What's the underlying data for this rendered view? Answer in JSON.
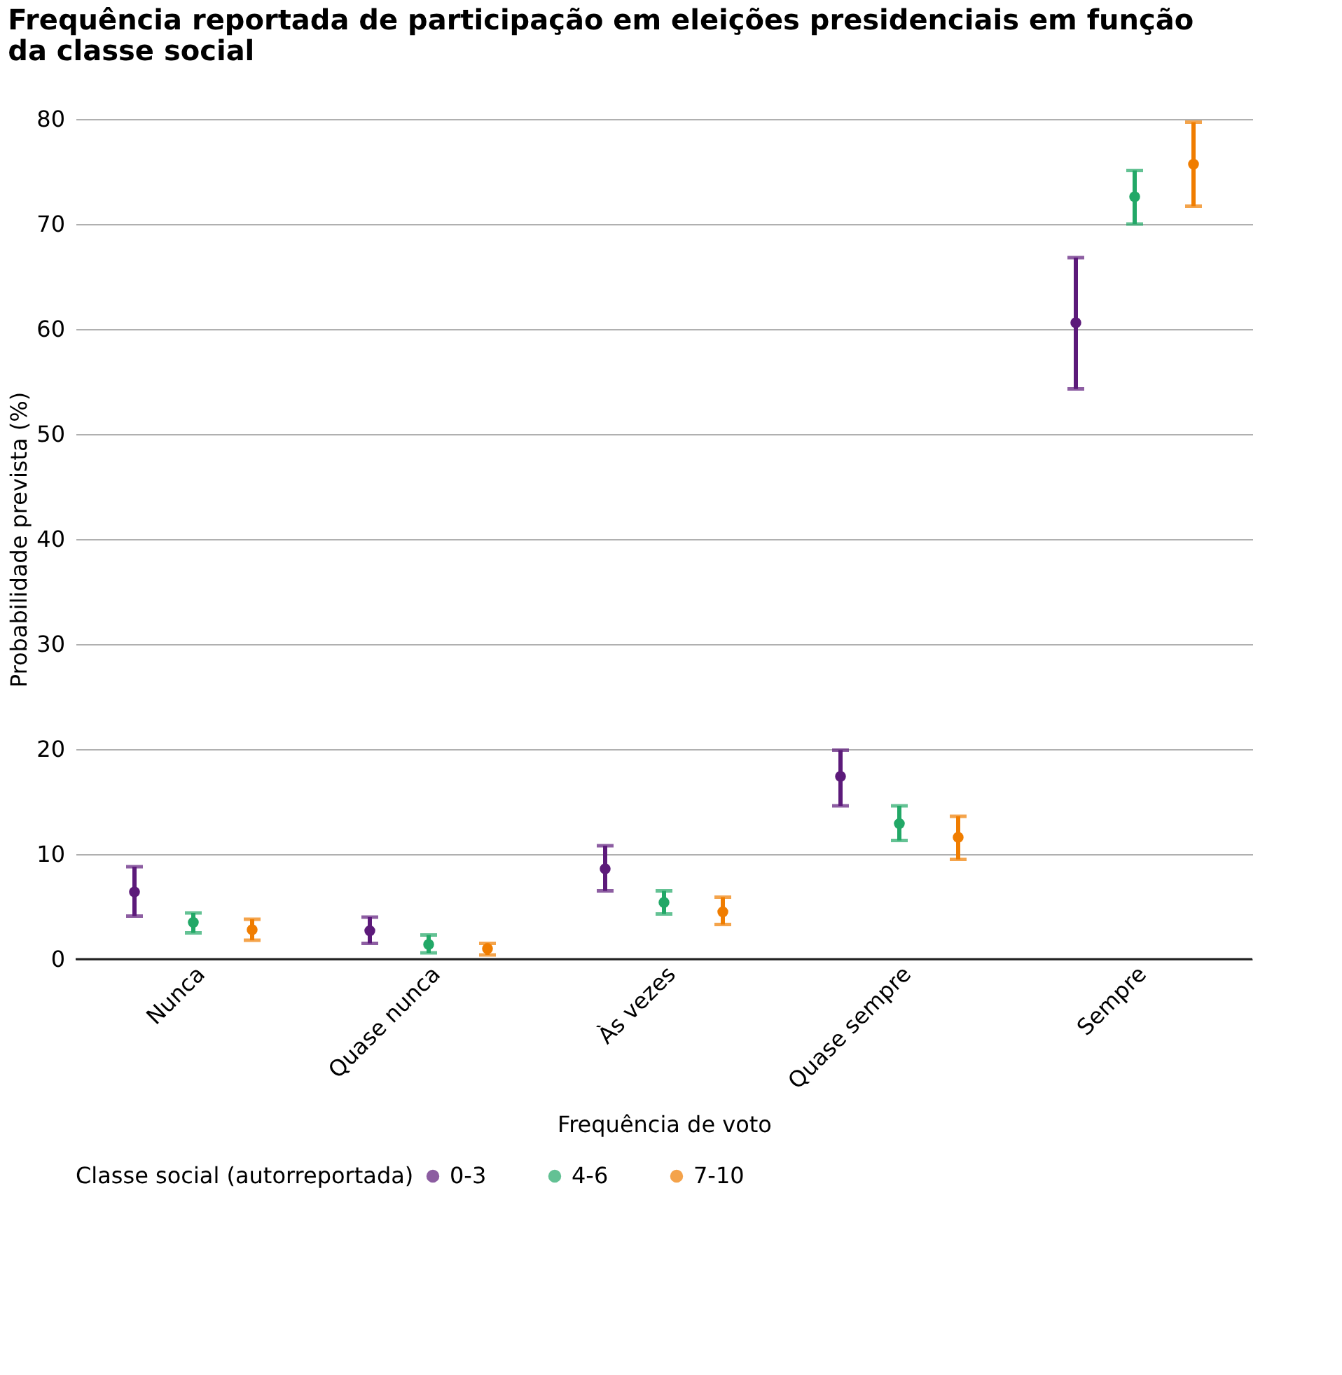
{
  "chart_data": {
    "type": "scatter",
    "title": "Frequência reportada de participação em eleições presidenciais em função da classe social",
    "xlabel": "Frequência de voto",
    "ylabel": "Probabilidade prevista (%)",
    "legend_title": "Classe social (autorreportada)",
    "categories": [
      "Nunca",
      "Quase nunca",
      "Às vezes",
      "Quase sempre",
      "Sempre"
    ],
    "series": [
      {
        "name": "0-3",
        "color": "#5c1a7a",
        "values": [
          6.4,
          2.7,
          8.6,
          17.4,
          60.6
        ],
        "errors": [
          [
            4.1,
            8.8
          ],
          [
            1.5,
            4.0
          ],
          [
            6.5,
            10.8
          ],
          [
            14.6,
            19.9
          ],
          [
            54.3,
            66.8
          ]
        ]
      },
      {
        "name": "4-6",
        "color": "#22a867",
        "values": [
          3.5,
          1.4,
          5.4,
          12.9,
          72.6
        ],
        "errors": [
          [
            2.5,
            4.4
          ],
          [
            0.6,
            2.3
          ],
          [
            4.3,
            6.5
          ],
          [
            11.3,
            14.6
          ],
          [
            70.0,
            75.1
          ]
        ]
      },
      {
        "name": "7-10",
        "color": "#f07d00",
        "values": [
          2.8,
          1.0,
          4.5,
          11.6,
          75.7
        ],
        "errors": [
          [
            1.8,
            3.8
          ],
          [
            0.4,
            1.5
          ],
          [
            3.3,
            5.9
          ],
          [
            9.5,
            13.6
          ],
          [
            71.7,
            79.7
          ]
        ]
      }
    ],
    "ylim": [
      0,
      80
    ],
    "yticks": [
      0,
      10,
      20,
      30,
      40,
      50,
      60,
      70,
      80
    ],
    "grid": "y",
    "legend": "bottom",
    "marker": "circle"
  }
}
